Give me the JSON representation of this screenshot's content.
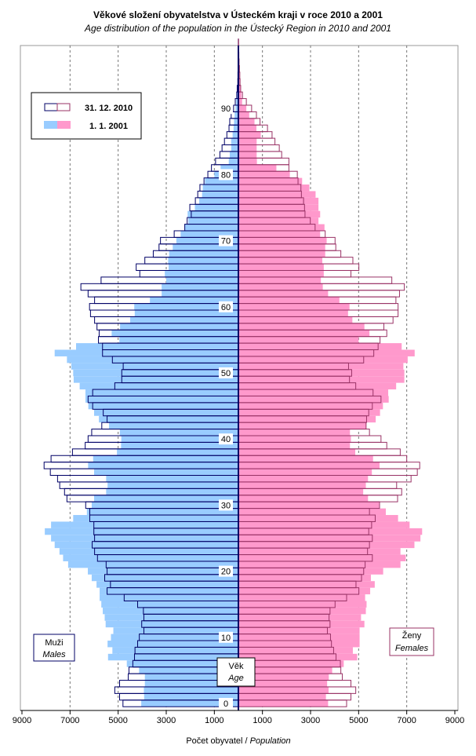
{
  "title": "Věkové složení obyvatelstva v Ústeckém kraji v roce 2010 a 2001",
  "subtitle": "Age distribution of the population in the Ústecký Region in 2010 and 2001",
  "colors": {
    "male_2001": "#99ccff",
    "female_2001": "#ff99cc",
    "male_2010_outline": "#000066",
    "female_2010_outline": "#993366"
  },
  "chart_data": {
    "type": "bar",
    "subtype": "population-pyramid",
    "xlabel_cz": "Počet obyvatel / ",
    "xlabel_en": "Population",
    "x_ticks": [
      "9000",
      "7000",
      "5000",
      "3000",
      "1000",
      "1000",
      "3000",
      "5000",
      "7000",
      "9000"
    ],
    "xlim": [
      -9000,
      9000
    ],
    "age_ticks": [
      "0",
      "10",
      "20",
      "30",
      "40",
      "50",
      "60",
      "70",
      "80",
      "90"
    ],
    "age_label_cz": "Věk",
    "age_label_en": "Age",
    "males_label_cz": "Muži",
    "males_label_en": "Males",
    "females_label_cz": "Ženy",
    "females_label_en": "Females",
    "legend": [
      "31. 12. 2010",
      "1. 1. 2001"
    ],
    "legend_position": "top-left",
    "grid": "vertical dashed",
    "ages_from": 0,
    "series": [
      {
        "name": "Males 31. 12. 2010",
        "values": [
          4800,
          4940,
          5140,
          4940,
          4580,
          4550,
          4390,
          4320,
          4300,
          4190,
          4120,
          3930,
          4020,
          3930,
          3950,
          4190,
          4750,
          5460,
          5320,
          5560,
          5460,
          5500,
          5860,
          5980,
          6080,
          5980,
          6010,
          6010,
          6180,
          6180,
          6350,
          7130,
          7230,
          7430,
          7520,
          7820,
          8080,
          7790,
          6900,
          6370,
          6250,
          6100,
          5680,
          5460,
          5620,
          6060,
          6250,
          6060,
          5140,
          4850,
          4850,
          4790,
          5240,
          5650,
          5650,
          5820,
          5790,
          5880,
          5980,
          6150,
          6190,
          5980,
          6250,
          6550,
          5710,
          4100,
          4250,
          3890,
          3540,
          3300,
          3240,
          2670,
          2230,
          2130,
          1960,
          2020,
          1790,
          1690,
          1600,
          1430,
          1270,
          1120,
          950,
          770,
          680,
          580,
          480,
          390,
          360,
          300,
          200,
          130,
          70,
          50,
          25,
          20,
          15,
          10,
          5,
          5,
          5
        ]
      },
      {
        "name": "Males 1. 1. 2001",
        "values": [
          4040,
          3920,
          3930,
          3890,
          3890,
          4130,
          4640,
          5420,
          5240,
          5440,
          5300,
          5200,
          5520,
          5560,
          5640,
          5700,
          5770,
          5770,
          5900,
          6100,
          6260,
          7080,
          7290,
          7440,
          7640,
          7790,
          8050,
          7790,
          6870,
          6300,
          6100,
          6000,
          5500,
          5440,
          5500,
          6000,
          6250,
          6040,
          5050,
          4880,
          4870,
          4930,
          5380,
          5800,
          6000,
          6240,
          6360,
          6360,
          6600,
          6850,
          6870,
          6950,
          7130,
          7640,
          6750,
          4950,
          5270,
          4920,
          4500,
          4310,
          4330,
          3680,
          3190,
          3190,
          3000,
          3060,
          2900,
          2920,
          2880,
          2730,
          2580,
          2400,
          2230,
          2080,
          2110,
          1810,
          1630,
          1510,
          1480,
          1390,
          1000,
          740,
          400,
          360,
          300,
          300,
          240,
          200,
          180,
          155,
          120,
          95,
          60,
          35,
          25,
          15,
          10,
          8,
          5,
          4,
          3
        ]
      },
      {
        "name": "Females 31. 12. 2010",
        "values": [
          4500,
          4680,
          4880,
          4680,
          4320,
          4260,
          4240,
          4060,
          3960,
          3870,
          3830,
          3700,
          3810,
          3770,
          3810,
          4020,
          4500,
          5010,
          4890,
          5120,
          5210,
          5270,
          5570,
          5370,
          5450,
          5570,
          5420,
          5540,
          5690,
          5450,
          5870,
          6620,
          6790,
          6580,
          7180,
          7440,
          7540,
          7000,
          6730,
          6170,
          5930,
          5450,
          5310,
          5330,
          5420,
          5570,
          5930,
          5600,
          4880,
          4620,
          4710,
          4580,
          5210,
          5630,
          5810,
          5890,
          6170,
          6050,
          6430,
          6640,
          6640,
          6550,
          6700,
          6900,
          6380,
          4680,
          5010,
          4760,
          4260,
          4050,
          4020,
          3610,
          3190,
          2990,
          2770,
          2750,
          2710,
          2620,
          2600,
          2480,
          2450,
          2100,
          2100,
          1800,
          1700,
          1520,
          1400,
          1210,
          900,
          750,
          550,
          330,
          170,
          95,
          70,
          60,
          45,
          30,
          20,
          15,
          10
        ]
      },
      {
        "name": "Females 1. 1. 2001",
        "values": [
          3730,
          3640,
          3750,
          3690,
          3760,
          3900,
          4380,
          4940,
          4760,
          5040,
          5040,
          5040,
          5240,
          5100,
          5300,
          5330,
          5270,
          5480,
          5670,
          5510,
          6020,
          6740,
          6960,
          6740,
          7320,
          7570,
          7640,
          7120,
          6640,
          6130,
          5850,
          5390,
          5190,
          5300,
          5390,
          5550,
          5870,
          5600,
          4860,
          4640,
          4680,
          4640,
          5310,
          5710,
          5890,
          6010,
          6250,
          6230,
          6560,
          6900,
          6900,
          6860,
          7040,
          7330,
          6790,
          5000,
          5450,
          5240,
          4740,
          4560,
          4620,
          4200,
          3730,
          3510,
          3430,
          3550,
          3550,
          3490,
          3610,
          3610,
          3670,
          3400,
          3580,
          3330,
          3400,
          3330,
          3330,
          3210,
          2950,
          2650,
          2140,
          1580,
          770,
          760,
          760,
          760,
          930,
          750,
          670,
          450,
          330,
          155,
          130,
          95,
          60,
          45,
          30,
          20,
          12,
          8,
          5
        ]
      }
    ]
  }
}
